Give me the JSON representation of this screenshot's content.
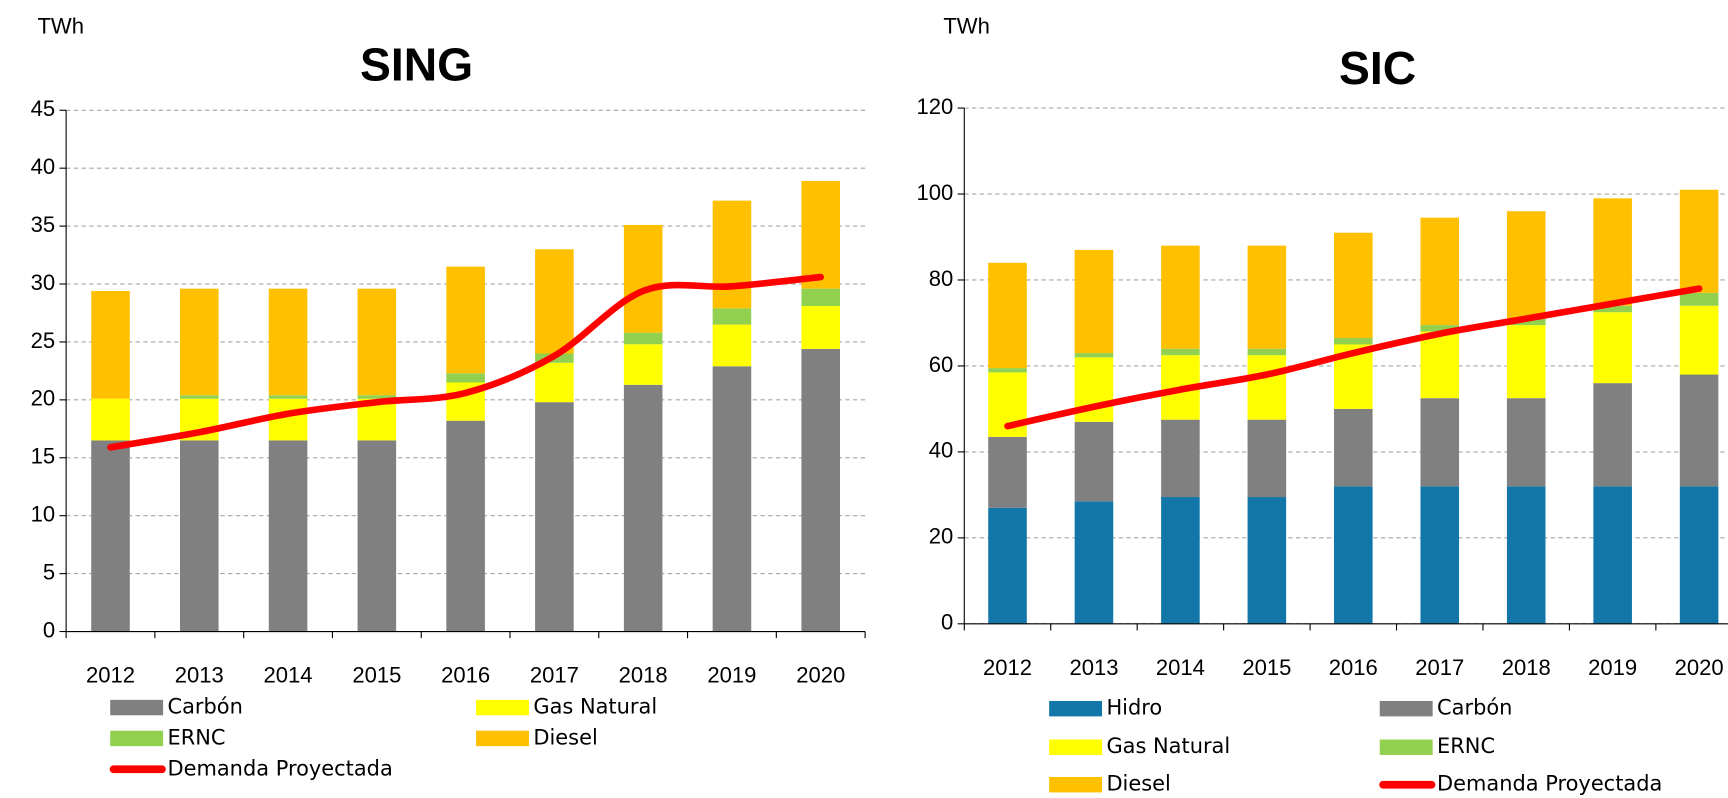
{
  "chart_data": [
    {
      "type": "bar",
      "stacked": true,
      "title": "SING",
      "y_label": "TWh",
      "categories": [
        "2012",
        "2013",
        "2014",
        "2015",
        "2016",
        "2017",
        "2018",
        "2019",
        "2020"
      ],
      "series": [
        {
          "name": "Carbón",
          "color": "#808080",
          "values": [
            16.5,
            16.5,
            16.5,
            16.5,
            18.2,
            19.8,
            21.3,
            22.9,
            24.4
          ]
        },
        {
          "name": "Gas Natural",
          "color": "#ffff00",
          "values": [
            3.6,
            3.6,
            3.6,
            3.6,
            3.3,
            3.4,
            3.5,
            3.6,
            3.7
          ]
        },
        {
          "name": "ERNC",
          "color": "#92d050",
          "values": [
            0,
            0.3,
            0.3,
            0.3,
            0.8,
            0.8,
            1.0,
            1.4,
            1.5
          ]
        },
        {
          "name": "Diesel",
          "color": "#ffc000",
          "values": [
            9.3,
            9.2,
            9.2,
            9.2,
            9.2,
            9.0,
            9.3,
            9.3,
            9.3
          ]
        },
        {
          "name": "Demanda Proyectada",
          "color": "#ff0000",
          "type": "line",
          "values": [
            15.9,
            17.2,
            18.8,
            19.8,
            20.6,
            23.8,
            29.4,
            29.8,
            30.6
          ]
        }
      ],
      "ylim": [
        0,
        45
      ],
      "yticks": [
        0,
        5,
        10,
        15,
        20,
        25,
        30,
        35,
        40,
        45
      ],
      "grid": true
    },
    {
      "type": "bar",
      "stacked": true,
      "title": "SIC",
      "y_label": "TWh",
      "categories": [
        "2012",
        "2013",
        "2014",
        "2015",
        "2016",
        "2017",
        "2018",
        "2019",
        "2020"
      ],
      "series": [
        {
          "name": "Hidro",
          "color": "#1277a8",
          "values": [
            27,
            28.5,
            29.5,
            29.5,
            32,
            32,
            32,
            32,
            32
          ]
        },
        {
          "name": "Carbón",
          "color": "#808080",
          "values": [
            16.5,
            18.5,
            18,
            18,
            18,
            20.5,
            20.5,
            24,
            26
          ]
        },
        {
          "name": "Gas Natural",
          "color": "#ffff00",
          "values": [
            15,
            15,
            15,
            15,
            15,
            15.5,
            17,
            16.5,
            16
          ]
        },
        {
          "name": "ERNC",
          "color": "#92d050",
          "values": [
            1,
            1,
            1.5,
            1.5,
            1.5,
            1.5,
            1.5,
            1.5,
            3
          ]
        },
        {
          "name": "Diesel",
          "color": "#ffc000",
          "values": [
            24.5,
            24,
            24,
            24,
            24.5,
            25,
            25,
            25,
            24
          ]
        },
        {
          "name": "Demanda Proyectada",
          "color": "#ff0000",
          "type": "line",
          "values": [
            46,
            50.5,
            54.5,
            58,
            63,
            67.5,
            71,
            74.5,
            78
          ]
        }
      ],
      "ylim": [
        0,
        120
      ],
      "yticks": [
        0,
        20,
        40,
        60,
        80,
        100,
        120
      ],
      "grid": true
    }
  ]
}
